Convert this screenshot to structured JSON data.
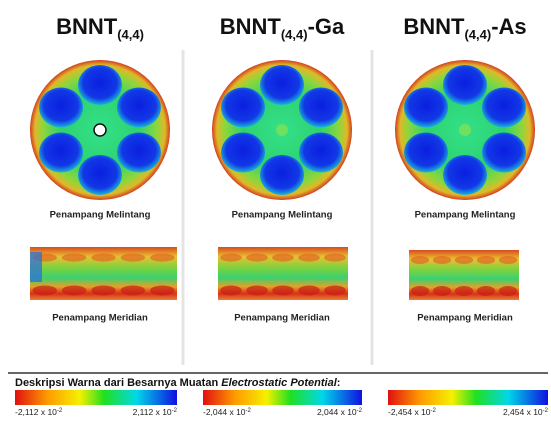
{
  "columns": [
    {
      "title": {
        "main": "BNNT",
        "sub": "(4,4)"
      },
      "cross_section_caption": "Penampang Melintang",
      "meridian_caption": "Penampang Meridian"
    },
    {
      "title": {
        "main": "BNNT",
        "sub": "(4,4)",
        "suffix": "-Ga"
      },
      "cross_section_caption": "Penampang Melintang",
      "meridian_caption": "Penampang Meridian"
    },
    {
      "title": {
        "main": "BNNT",
        "sub": "(4,4)",
        "suffix": "-As"
      },
      "cross_section_caption": "Penampang Melintang",
      "meridian_caption": "Penampang Meridian"
    }
  ],
  "legend": {
    "title": "Deskripsi Warna dari Besarnya Muatan ",
    "title_italic": "Electrostatic Potential",
    "title_end": ":",
    "scales": [
      {
        "min": "-2,112 x 10",
        "min_exp": "-2",
        "max": "2,112 x 10",
        "max_exp": "-2"
      },
      {
        "min": "-2,044 x 10",
        "min_exp": "-2",
        "max": "2,044 x 10",
        "max_exp": "-2"
      },
      {
        "min": "-2,454 x 10",
        "min_exp": "-2",
        "max": "2,454 x 10",
        "max_exp": "-2"
      }
    ]
  }
}
